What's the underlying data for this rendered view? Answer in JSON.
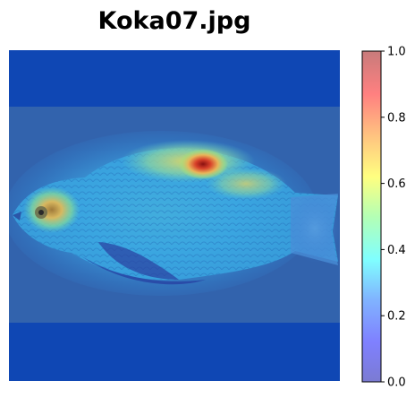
{
  "chart_data": {
    "type": "heatmap",
    "title": "Koka07.jpg",
    "xlabel": "",
    "ylabel": "",
    "axes_visible": false,
    "colormap": "jet",
    "overlay_alpha": 0.5,
    "colorbar": {
      "position": "right",
      "range": [
        0.0,
        1.0
      ],
      "ticks": [
        0.0,
        0.2,
        0.4,
        0.6,
        0.8,
        1.0
      ],
      "tick_labels": [
        "0.0",
        "0.2",
        "0.4",
        "0.6",
        "0.8",
        "1.0"
      ]
    },
    "underlying_image": "fish photograph",
    "hotspots": [
      {
        "region": "dorsal area above pectoral region",
        "value": 0.95
      },
      {
        "region": "head / eye",
        "value": 0.7
      },
      {
        "region": "upper back near dorsal fin",
        "value": 0.55
      },
      {
        "region": "body scales",
        "value": 0.4
      },
      {
        "region": "tail",
        "value": 0.3
      },
      {
        "region": "background",
        "value": 0.15
      }
    ]
  },
  "colors": {
    "background_low": "#0f47b4",
    "hot": "#a31616",
    "warm": "#e8c35a",
    "mid": "#52d6c8",
    "fish_body": "#3aa6e0"
  }
}
